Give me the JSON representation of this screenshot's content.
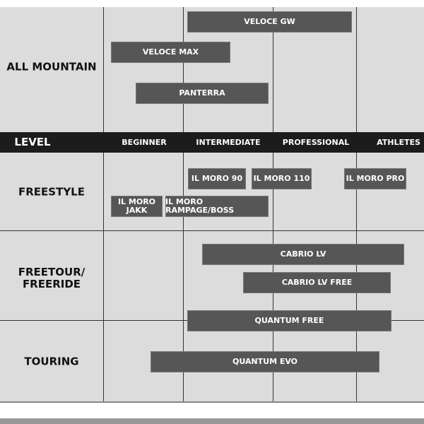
{
  "level_row": {
    "label": "LEVEL",
    "levels": [
      "BEGINNER",
      "INTERMEDIATE",
      "PROFESSIONAL",
      "ATHLETES"
    ]
  },
  "sections": [
    {
      "label": [
        "ALL MOUNTAIN"
      ],
      "products": [
        [
          "VELOCE GW"
        ],
        [
          "VELOCE MAX"
        ],
        [
          "PANTERRA"
        ]
      ]
    },
    {
      "label": [
        "FREESTYLE"
      ],
      "products": [
        [
          "IL MORO 90"
        ],
        [
          "IL MORO 110"
        ],
        [
          "IL MORO PRO"
        ],
        [
          "IL MORO",
          "JAKK"
        ],
        [
          "IL MORO RAMPAGE/BOSS"
        ]
      ]
    },
    {
      "label": [
        "FREETOUR/",
        "FREERIDE"
      ],
      "products": [
        [
          "CABRIO LV"
        ],
        [
          "CABRIO LV FREE"
        ],
        [
          "QUANTUM FREE"
        ]
      ]
    },
    {
      "label": [
        "TOURING"
      ],
      "products": [
        [
          "QUANTUM EVO"
        ]
      ]
    }
  ]
}
